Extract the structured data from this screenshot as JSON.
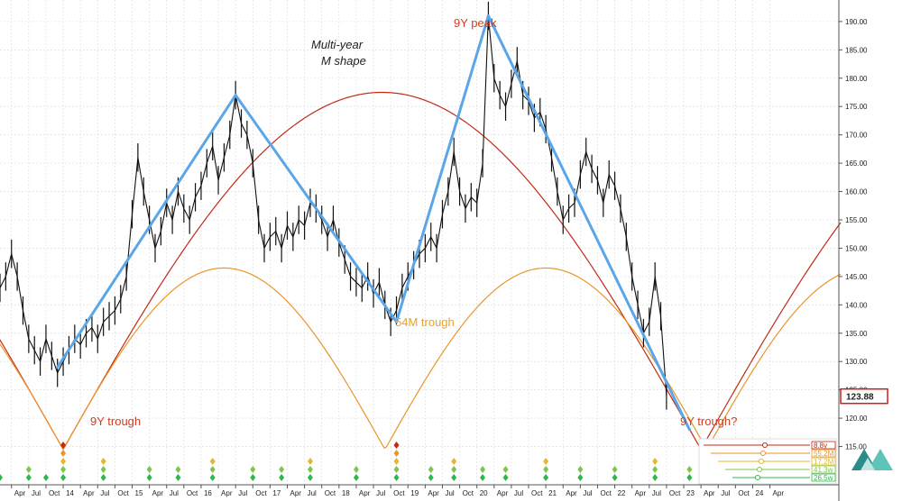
{
  "chart_data": {
    "type": "line",
    "ylim": [
      110,
      193
    ],
    "x_range": [
      "2013-02",
      "2025-04"
    ],
    "grid": true,
    "y_ticks": [
      "115.00",
      "120.00",
      "125.00",
      "130.00",
      "135.00",
      "140.00",
      "145.00",
      "150.00",
      "155.00",
      "160.00",
      "165.00",
      "170.00",
      "175.00",
      "180.00",
      "185.00",
      "190.00"
    ],
    "last_price": "123.88",
    "x_ticks": [
      {
        "d": "2013-04",
        "l": "Apr"
      },
      {
        "d": "2013-07",
        "l": "Jul"
      },
      {
        "d": "2013-10",
        "l": "Oct"
      },
      {
        "d": "2014-01",
        "l": "14"
      },
      {
        "d": "2014-04",
        "l": "Apr"
      },
      {
        "d": "2014-07",
        "l": "Jul"
      },
      {
        "d": "2014-10",
        "l": "Oct"
      },
      {
        "d": "2015-01",
        "l": "15"
      },
      {
        "d": "2015-04",
        "l": "Apr"
      },
      {
        "d": "2015-07",
        "l": "Jul"
      },
      {
        "d": "2015-10",
        "l": "Oct"
      },
      {
        "d": "2016-01",
        "l": "16"
      },
      {
        "d": "2016-04",
        "l": "Apr"
      },
      {
        "d": "2016-07",
        "l": "Jul"
      },
      {
        "d": "2016-10",
        "l": "Oct"
      },
      {
        "d": "2017-01",
        "l": "17"
      },
      {
        "d": "2017-04",
        "l": "Apr"
      },
      {
        "d": "2017-07",
        "l": "Jul"
      },
      {
        "d": "2017-10",
        "l": "Oct"
      },
      {
        "d": "2018-01",
        "l": "18"
      },
      {
        "d": "2018-04",
        "l": "Apr"
      },
      {
        "d": "2018-07",
        "l": "Jul"
      },
      {
        "d": "2018-10",
        "l": "Oct"
      },
      {
        "d": "2019-01",
        "l": "19"
      },
      {
        "d": "2019-04",
        "l": "Apr"
      },
      {
        "d": "2019-07",
        "l": "Jul"
      },
      {
        "d": "2019-10",
        "l": "Oct"
      },
      {
        "d": "2020-01",
        "l": "20"
      },
      {
        "d": "2020-04",
        "l": "Apr"
      },
      {
        "d": "2020-07",
        "l": "Jul"
      },
      {
        "d": "2020-10",
        "l": "Oct"
      },
      {
        "d": "2021-01",
        "l": "21"
      },
      {
        "d": "2021-04",
        "l": "Apr"
      },
      {
        "d": "2021-07",
        "l": "Jul"
      },
      {
        "d": "2021-10",
        "l": "Oct"
      },
      {
        "d": "2022-01",
        "l": "22"
      },
      {
        "d": "2022-04",
        "l": "Apr"
      },
      {
        "d": "2022-07",
        "l": "Jul"
      },
      {
        "d": "2022-10",
        "l": "Oct"
      },
      {
        "d": "2023-01",
        "l": "23"
      },
      {
        "d": "2023-04",
        "l": "Apr"
      },
      {
        "d": "2023-07",
        "l": "Jul"
      },
      {
        "d": "2023-10",
        "l": "Oct"
      },
      {
        "d": "2024-01",
        "l": "24"
      },
      {
        "d": "2024-04",
        "l": "Apr"
      }
    ],
    "price_series": [
      [
        "2013-02",
        143
      ],
      [
        "2013-03",
        145
      ],
      [
        "2013-04",
        149
      ],
      [
        "2013-05",
        145
      ],
      [
        "2013-06",
        139
      ],
      [
        "2013-07",
        134
      ],
      [
        "2013-08",
        132
      ],
      [
        "2013-09",
        130
      ],
      [
        "2013-10",
        134
      ],
      [
        "2013-11",
        131
      ],
      [
        "2013-12",
        128
      ],
      [
        "2014-01",
        130
      ],
      [
        "2014-02",
        132
      ],
      [
        "2014-03",
        134
      ],
      [
        "2014-04",
        133
      ],
      [
        "2014-05",
        135
      ],
      [
        "2014-06",
        136
      ],
      [
        "2014-07",
        134
      ],
      [
        "2014-08",
        137
      ],
      [
        "2014-09",
        138
      ],
      [
        "2014-10",
        139
      ],
      [
        "2014-11",
        141
      ],
      [
        "2014-12",
        145
      ],
      [
        "2015-01",
        156
      ],
      [
        "2015-02",
        166
      ],
      [
        "2015-03",
        160
      ],
      [
        "2015-04",
        155
      ],
      [
        "2015-05",
        150
      ],
      [
        "2015-06",
        153
      ],
      [
        "2015-07",
        158
      ],
      [
        "2015-08",
        155
      ],
      [
        "2015-09",
        160
      ],
      [
        "2015-10",
        157
      ],
      [
        "2015-11",
        155
      ],
      [
        "2015-12",
        159
      ],
      [
        "2016-01",
        161
      ],
      [
        "2016-02",
        165
      ],
      [
        "2016-03",
        168
      ],
      [
        "2016-04",
        162
      ],
      [
        "2016-05",
        166
      ],
      [
        "2016-06",
        170
      ],
      [
        "2016-07",
        177
      ],
      [
        "2016-08",
        172
      ],
      [
        "2016-09",
        170
      ],
      [
        "2016-10",
        165
      ],
      [
        "2016-11",
        155
      ],
      [
        "2016-12",
        150
      ],
      [
        "2017-01",
        152
      ],
      [
        "2017-02",
        153
      ],
      [
        "2017-03",
        150
      ],
      [
        "2017-04",
        154
      ],
      [
        "2017-05",
        152
      ],
      [
        "2017-06",
        155
      ],
      [
        "2017-07",
        154
      ],
      [
        "2017-08",
        158
      ],
      [
        "2017-09",
        157
      ],
      [
        "2017-10",
        155
      ],
      [
        "2017-11",
        152
      ],
      [
        "2017-12",
        155
      ],
      [
        "2018-01",
        151
      ],
      [
        "2018-02",
        148
      ],
      [
        "2018-03",
        145
      ],
      [
        "2018-04",
        144
      ],
      [
        "2018-05",
        143
      ],
      [
        "2018-06",
        145
      ],
      [
        "2018-07",
        142
      ],
      [
        "2018-08",
        144
      ],
      [
        "2018-09",
        140
      ],
      [
        "2018-10",
        137
      ],
      [
        "2018-11",
        139
      ],
      [
        "2018-12",
        143
      ],
      [
        "2019-01",
        145
      ],
      [
        "2019-02",
        147
      ],
      [
        "2019-03",
        149
      ],
      [
        "2019-04",
        150
      ],
      [
        "2019-05",
        152
      ],
      [
        "2019-06",
        150
      ],
      [
        "2019-07",
        156
      ],
      [
        "2019-08",
        160
      ],
      [
        "2019-09",
        167
      ],
      [
        "2019-10",
        160
      ],
      [
        "2019-11",
        157
      ],
      [
        "2019-12",
        159
      ],
      [
        "2020-01",
        158
      ],
      [
        "2020-02",
        165
      ],
      [
        "2020-03",
        191
      ],
      [
        "2020-04",
        180
      ],
      [
        "2020-05",
        177
      ],
      [
        "2020-06",
        175
      ],
      [
        "2020-07",
        179
      ],
      [
        "2020-08",
        183
      ],
      [
        "2020-09",
        177
      ],
      [
        "2020-10",
        176
      ],
      [
        "2020-11",
        173
      ],
      [
        "2020-12",
        174
      ],
      [
        "2021-01",
        171
      ],
      [
        "2021-02",
        166
      ],
      [
        "2021-03",
        160
      ],
      [
        "2021-04",
        155
      ],
      [
        "2021-05",
        157
      ],
      [
        "2021-06",
        158
      ],
      [
        "2021-07",
        163
      ],
      [
        "2021-08",
        167
      ],
      [
        "2021-09",
        164
      ],
      [
        "2021-10",
        162
      ],
      [
        "2021-11",
        158
      ],
      [
        "2021-12",
        163
      ],
      [
        "2022-01",
        161
      ],
      [
        "2022-02",
        157
      ],
      [
        "2022-03",
        152
      ],
      [
        "2022-04",
        145
      ],
      [
        "2022-05",
        140
      ],
      [
        "2022-06",
        135
      ],
      [
        "2022-07",
        137
      ],
      [
        "2022-08",
        145
      ],
      [
        "2022-09",
        138
      ],
      [
        "2022-10",
        124
      ]
    ],
    "trendlines": [
      {
        "from": [
          "2013-12",
          129
        ],
        "to": [
          "2016-07",
          177
        ]
      },
      {
        "from": [
          "2016-07",
          177
        ],
        "to": [
          "2018-11",
          137
        ]
      },
      {
        "from": [
          "2018-11",
          137
        ],
        "to": [
          "2020-03",
          191
        ]
      },
      {
        "from": [
          "2020-03",
          191
        ],
        "to": [
          "2023-02",
          118
        ]
      }
    ],
    "cycles": [
      {
        "name": "9Y",
        "color": "#c22a14",
        "troughs": [
          "2014-01",
          "2023-04"
        ]
      },
      {
        "name": "54M",
        "color": "#e9962a",
        "troughs": [
          "2014-01",
          "2018-11",
          "2023-05"
        ]
      }
    ],
    "annotations": {
      "peak": "9Y peak",
      "trough_left": "9Y trough",
      "trough_right": "9Y trough?",
      "trough_mid": "54M trough",
      "shape_line1": "Multi-year",
      "shape_line2": "M shape"
    },
    "legend": [
      {
        "label": "8.8y",
        "color": "#c22a14"
      },
      {
        "label": "55.2M",
        "color": "#e9962a"
      },
      {
        "label": "17.2M",
        "color": "#e8b62e"
      },
      {
        "label": "41.3w",
        "color": "#7cc64f"
      },
      {
        "label": "26.5w",
        "color": "#2fb84a"
      }
    ],
    "diamond_colors": [
      "#c22a14",
      "#e9962a",
      "#e8b62e",
      "#7cc64f",
      "#2fb84a"
    ],
    "colors": {
      "trend": "#5aa6e8",
      "price": "#111111",
      "last_price_box": "#d81818"
    }
  }
}
